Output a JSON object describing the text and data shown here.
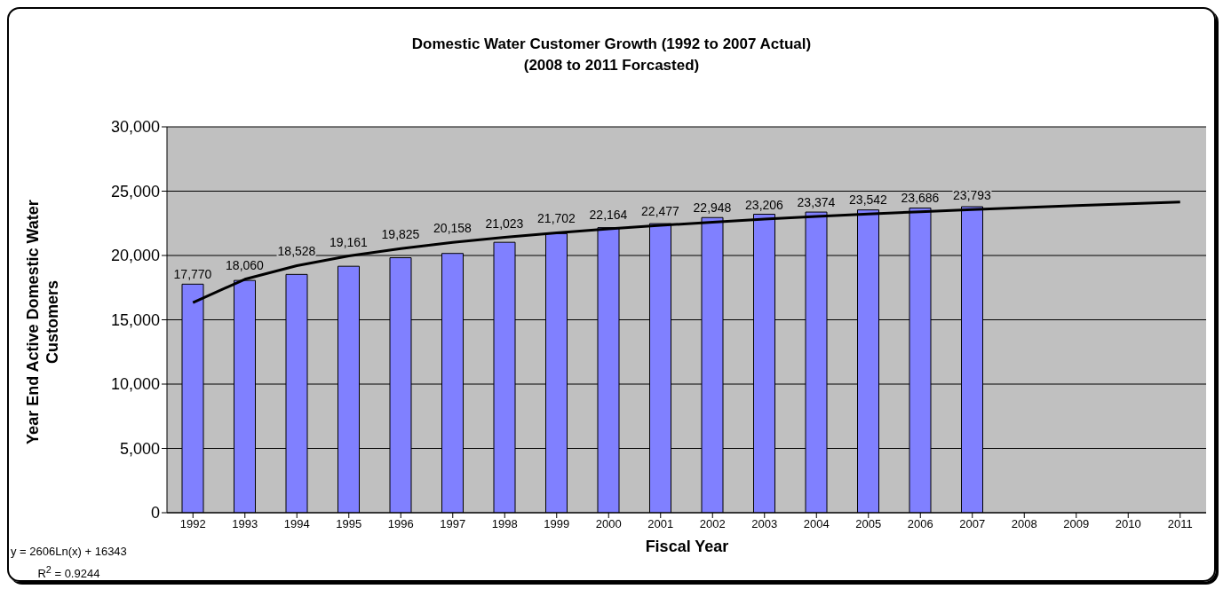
{
  "chart_data": {
    "type": "bar",
    "title": "Domestic Water Customer Growth (1992 to 2007 Actual)",
    "subtitle": "(2008 to 2011 Forcasted)",
    "xlabel": "Fiscal Year",
    "ylabel": "Year End Active Domestic Water Customers",
    "categories": [
      "1992",
      "1993",
      "1994",
      "1995",
      "1996",
      "1997",
      "1998",
      "1999",
      "2000",
      "2001",
      "2002",
      "2003",
      "2004",
      "2005",
      "2006",
      "2007",
      "2008",
      "2009",
      "2010",
      "2011"
    ],
    "series": [
      {
        "color": "#8080ff",
        "values": [
          17770,
          18060,
          18528,
          19161,
          19825,
          20158,
          21023,
          21702,
          22164,
          22477,
          22948,
          23206,
          23374,
          23542,
          23686,
          23793,
          null,
          null,
          null,
          null
        ],
        "value_labels": [
          "17,770",
          "18,060",
          "18,528",
          "19,161",
          "19,825",
          "20,158",
          "21,023",
          "21,702",
          "22,164",
          "22,477",
          "22,948",
          "23,206",
          "23,374",
          "23,542",
          "23,686",
          "23,793",
          null,
          null,
          null,
          null
        ]
      },
      {
        "type": "line",
        "color": "#000000",
        "values": [
          16340,
          18150,
          19210,
          19960,
          20540,
          21010,
          21410,
          21760,
          22070,
          22340,
          22590,
          22820,
          23030,
          23220,
          23400,
          23570,
          23730,
          23880,
          24020,
          24150
        ]
      }
    ],
    "ylim": [
      0,
      30000
    ],
    "yticks": [
      0,
      {
        "value": 5000,
        "label": "5,000"
      },
      {
        "value": 10000,
        "label": "10,000"
      },
      {
        "value": 15000,
        "label": "15,000"
      },
      {
        "value": 20000,
        "label": "20,000"
      },
      {
        "value": 25000,
        "label": "25,000"
      },
      {
        "value": 30000,
        "label": "30,000"
      }
    ],
    "grid": "y",
    "legend": false,
    "marker": "none",
    "line_style": "solid",
    "annotations": [
      "y = 2606Ln(x) + 16343",
      "R$^{2}$ = 0.9244"
    ]
  }
}
